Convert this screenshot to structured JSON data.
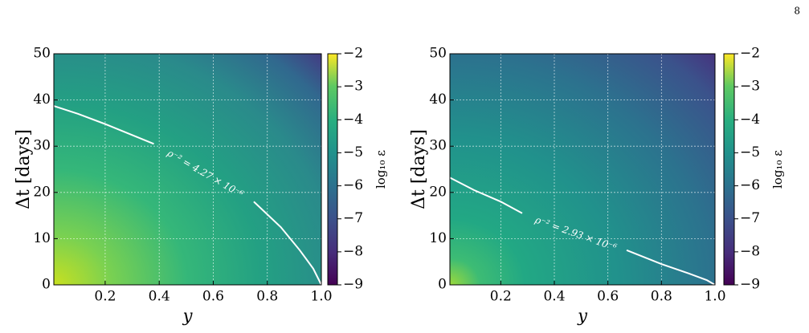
{
  "page_number": "8",
  "chart_data": [
    {
      "type": "heatmap",
      "xlabel": "y",
      "ylabel": "Δt [days]",
      "xlim": [
        0.01,
        1
      ],
      "ylim": [
        0,
        50
      ],
      "xticks": [
        0.2,
        0.4,
        0.6,
        0.8,
        {
          "value": 1,
          "label": "1.0"
        }
      ],
      "yticks": [
        0,
        10,
        20,
        30,
        40,
        50
      ],
      "grid": true,
      "colorbar": {
        "label": "log₁₀ ε",
        "lim": [
          -9,
          -2
        ],
        "ticks": [
          {
            "value": -9,
            "label": "−9"
          },
          {
            "value": -8,
            "label": "−8"
          },
          {
            "value": -7,
            "label": "−7"
          },
          {
            "value": -6,
            "label": "−6"
          },
          {
            "value": -5,
            "label": "−5"
          },
          {
            "value": -4,
            "label": "−4"
          },
          {
            "value": -3,
            "label": "−3"
          },
          {
            "value": -2,
            "label": "−2"
          }
        ]
      },
      "contour": {
        "label": "ρ⁻² = 4.27 × 10⁻⁶",
        "color": "#ffffff",
        "x": [
          0.01,
          0.1,
          0.2,
          0.38,
          null,
          0.75,
          0.85,
          0.92,
          0.97,
          1.0
        ],
        "y": [
          38.7,
          37,
          34.8,
          30.5,
          null,
          18,
          12.5,
          7.5,
          3.5,
          0
        ]
      }
    },
    {
      "type": "heatmap",
      "xlabel": "y",
      "ylabel": "Δt [days]",
      "xlim": [
        0.01,
        1
      ],
      "ylim": [
        0,
        50
      ],
      "xticks": [
        0.2,
        0.4,
        0.6,
        0.8,
        {
          "value": 1,
          "label": "1.0"
        }
      ],
      "yticks": [
        0,
        10,
        20,
        30,
        40,
        50
      ],
      "grid": true,
      "colorbar": {
        "label": "log₁₀ ε",
        "lim": [
          -9,
          -2
        ],
        "ticks": [
          {
            "value": -9,
            "label": "−9"
          },
          {
            "value": -8,
            "label": "−8"
          },
          {
            "value": -7,
            "label": "−7"
          },
          {
            "value": -6,
            "label": "−6"
          },
          {
            "value": -5,
            "label": "−5"
          },
          {
            "value": -4,
            "label": "−4"
          },
          {
            "value": -3,
            "label": "−3"
          },
          {
            "value": -2,
            "label": "−2"
          }
        ]
      },
      "contour": {
        "label": "ρ⁻² = 2.93 × 10⁻⁶",
        "color": "#ffffff",
        "x": [
          0.01,
          0.1,
          0.2,
          0.28,
          null,
          0.67,
          0.8,
          0.9,
          0.97,
          1.0
        ],
        "y": [
          23.2,
          20.5,
          18,
          15.5,
          null,
          7.5,
          4.5,
          2.5,
          1,
          0
        ]
      }
    }
  ]
}
